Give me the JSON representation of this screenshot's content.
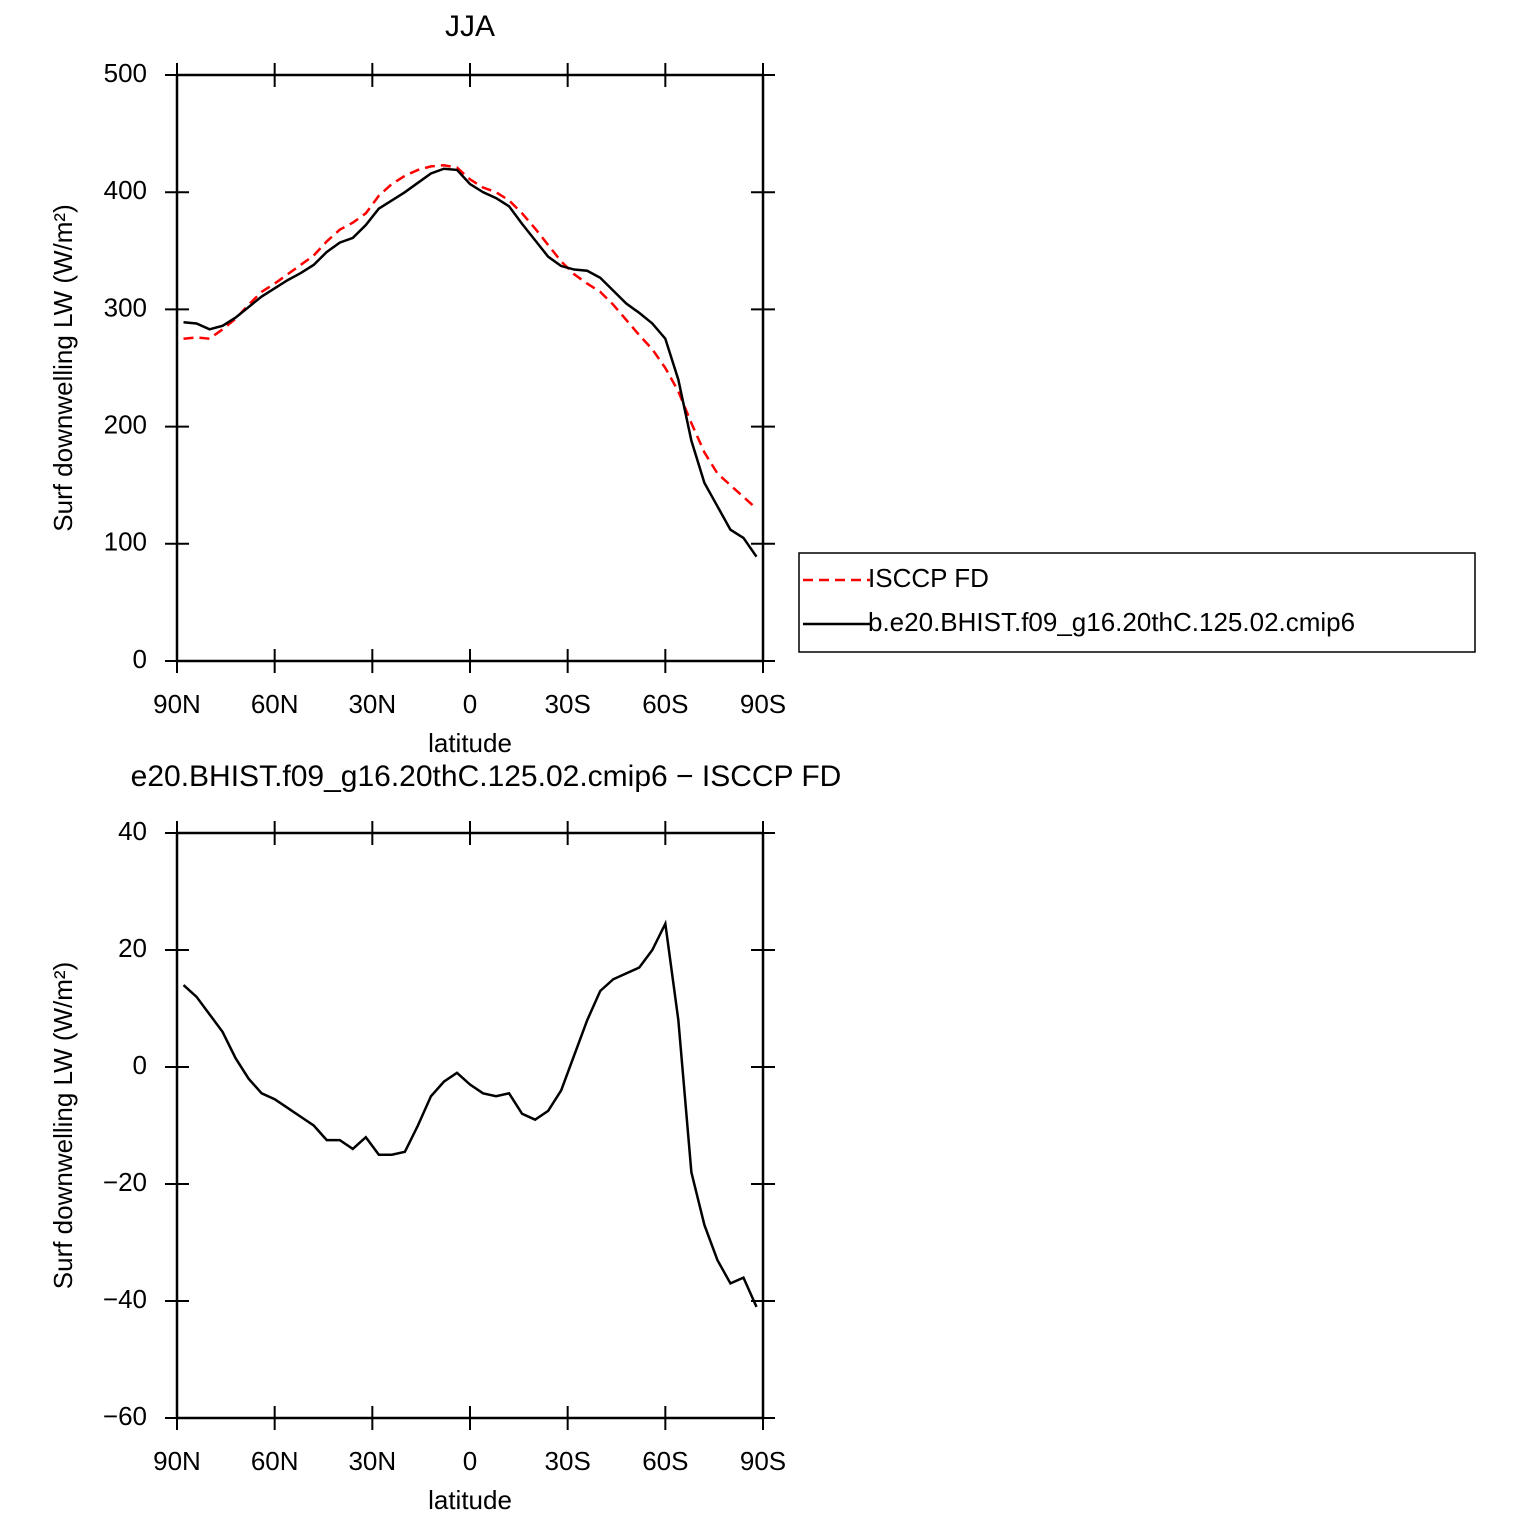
{
  "chart_data": [
    {
      "type": "line",
      "title": "JJA",
      "xlabel": "latitude",
      "ylabel": "Surf downwelling LW (W/m²)",
      "x": [
        88,
        84,
        80,
        76,
        72,
        68,
        64,
        60,
        56,
        52,
        48,
        44,
        40,
        36,
        32,
        28,
        24,
        20,
        16,
        12,
        8,
        4,
        0,
        -4,
        -8,
        -12,
        -16,
        -20,
        -24,
        -28,
        -32,
        -36,
        -40,
        -44,
        -48,
        -52,
        -56,
        -60,
        -64,
        -68,
        -72,
        -76,
        -80,
        -84,
        -88
      ],
      "series": [
        {
          "name": "ISCCP FD",
          "color": "#ff0000",
          "style": "dashed",
          "values": [
            275,
            276,
            275,
            283,
            292,
            304,
            315,
            322,
            330,
            338,
            346,
            358,
            368,
            374,
            382,
            397,
            407,
            414,
            419,
            422,
            423,
            421,
            411,
            404,
            400,
            393,
            382,
            369,
            355,
            341,
            330,
            322,
            315,
            304,
            291,
            278,
            266,
            250,
            230,
            203,
            178,
            160,
            150,
            140,
            130
          ]
        },
        {
          "name": "b.e20.BHIST.f09_g16.20thC.125.02.cmip6",
          "color": "#000000",
          "style": "solid",
          "values": [
            289,
            288,
            283,
            286,
            293,
            302,
            311,
            318,
            325,
            331,
            338,
            349,
            357,
            361,
            372,
            386,
            393,
            400,
            408,
            416,
            420,
            419,
            407,
            400,
            395,
            388,
            373,
            359,
            345,
            337,
            334,
            333,
            327,
            316,
            305,
            297,
            288,
            275,
            240,
            188,
            152,
            132,
            112,
            105,
            89
          ]
        }
      ],
      "xlim": [
        90,
        -90
      ],
      "xticks": [
        {
          "value": 90,
          "label": "90N"
        },
        {
          "value": 60,
          "label": "60N"
        },
        {
          "value": 30,
          "label": "30N"
        },
        0,
        {
          "value": -30,
          "label": "30S"
        },
        {
          "value": -60,
          "label": "60S"
        },
        {
          "value": -90,
          "label": "90S"
        }
      ],
      "ylim": [
        0,
        500
      ],
      "yticks": [
        0,
        100,
        200,
        300,
        400,
        500
      ],
      "legend": "right"
    },
    {
      "type": "line",
      "title": "e20.BHIST.f09_g16.20thC.125.02.cmip6 − ISCCP FD",
      "xlabel": "latitude",
      "ylabel": "Surf downwelling LW (W/m²)",
      "x": [
        88,
        84,
        80,
        76,
        72,
        68,
        64,
        60,
        56,
        52,
        48,
        44,
        40,
        36,
        32,
        28,
        24,
        20,
        16,
        12,
        8,
        4,
        0,
        -4,
        -8,
        -12,
        -16,
        -20,
        -24,
        -28,
        -32,
        -36,
        -40,
        -44,
        -48,
        -52,
        -56,
        -60,
        -64,
        -68,
        -72,
        -76,
        -80,
        -84,
        -88
      ],
      "series": [
        {
          "color": "#000000",
          "style": "solid",
          "values": [
            14,
            12,
            9,
            6,
            1.5,
            -2,
            -4.5,
            -5.5,
            -7,
            -8.5,
            -10,
            -12.5,
            -12.5,
            -14,
            -12,
            -15,
            -15,
            -14.5,
            -10,
            -5,
            -2.5,
            -1,
            -3,
            -4.5,
            -5,
            -4.5,
            -8,
            -9,
            -7.5,
            -4,
            2,
            8,
            13,
            15,
            16,
            17,
            20,
            24.5,
            8,
            -18,
            -27,
            -33,
            -37,
            -36,
            -41
          ]
        }
      ],
      "xlim": [
        90,
        -90
      ],
      "xticks": [
        {
          "value": 90,
          "label": "90N"
        },
        {
          "value": 60,
          "label": "60N"
        },
        {
          "value": 30,
          "label": "30N"
        },
        0,
        {
          "value": -30,
          "label": "30S"
        },
        {
          "value": -60,
          "label": "60S"
        },
        {
          "value": -90,
          "label": "90S"
        }
      ],
      "ylim": [
        -60,
        40
      ],
      "yticks": [
        {
          "value": -60,
          "label": "−60"
        },
        {
          "value": -40,
          "label": "−40"
        },
        {
          "value": -20,
          "label": "−20"
        },
        0,
        20,
        40
      ]
    }
  ]
}
